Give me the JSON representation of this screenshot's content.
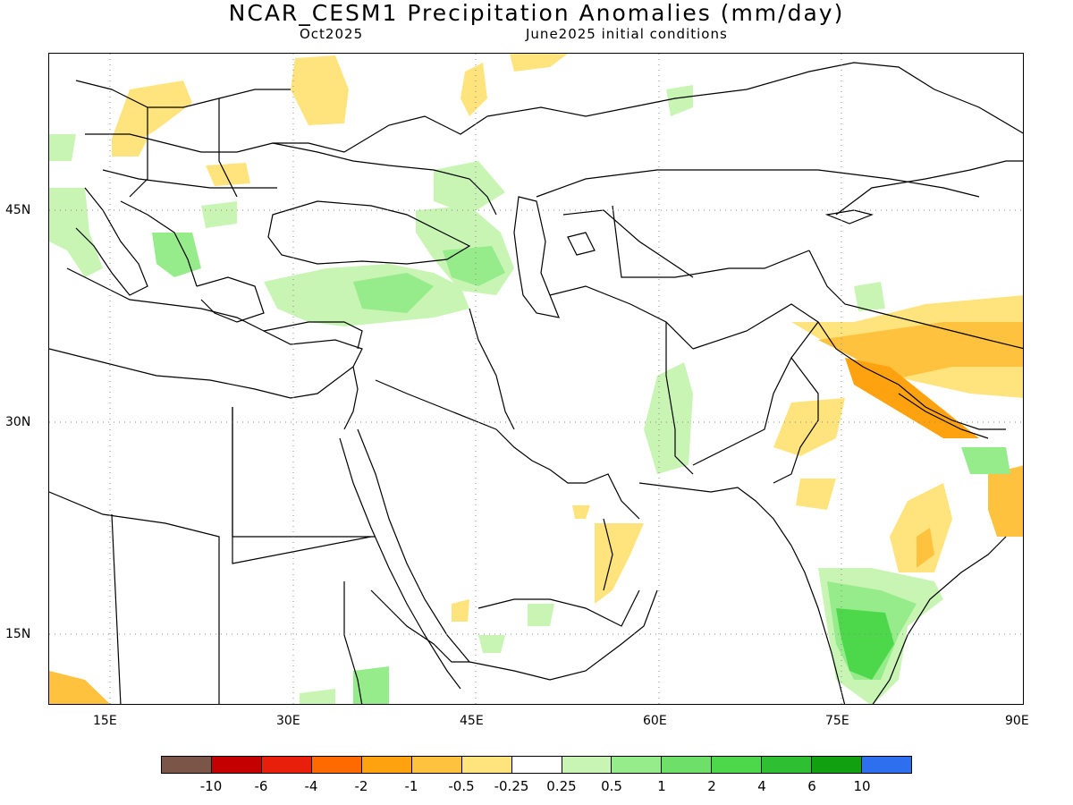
{
  "title": "NCAR_CESM1 Precipitation Anomalies (mm/day)",
  "subtitle_month": "Oct2025",
  "subtitle_init": "June2025 initial conditions",
  "map": {
    "lat_labels": [
      "45N",
      "30N",
      "15N"
    ],
    "lon_labels": [
      "15E",
      "30E",
      "45E",
      "60E",
      "75E",
      "90E"
    ]
  },
  "colorbar": {
    "colors": [
      "#7a5548",
      "#c40000",
      "#e8200b",
      "#ff6a00",
      "#ffa20f",
      "#ffc23e",
      "#ffe37c",
      "#ffffff",
      "#c8f5b4",
      "#96eb8a",
      "#6ee06a",
      "#4cd84a",
      "#2fbf32",
      "#10a010",
      "#2e6ff0"
    ],
    "labels": [
      "-10",
      "-6",
      "-4",
      "-2",
      "-1",
      "-0.5",
      "-0.25",
      "0.25",
      "0.5",
      "1",
      "2",
      "4",
      "6",
      "10"
    ]
  },
  "palette": {
    "dry_light": "#ffe37c",
    "dry_mid": "#ffc23e",
    "dry_strong": "#ffa20f",
    "wet_light": "#c8f5b4",
    "wet_mid": "#96eb8a",
    "wet_strong": "#4cd84a"
  }
}
